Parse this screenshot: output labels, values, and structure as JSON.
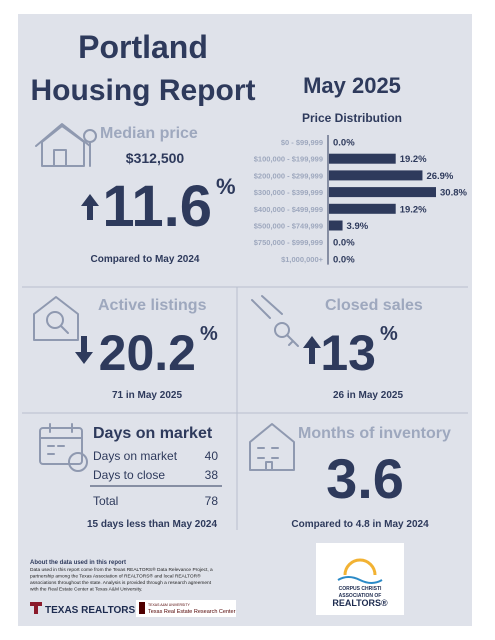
{
  "header": {
    "title_line1": "Portland",
    "title_line2": "Housing Report",
    "period": "May 2025"
  },
  "price_distribution": {
    "title": "Price Distribution",
    "categories": [
      "$0 - $99,999",
      "$100,000 - $199,999",
      "$200,000 - $299,999",
      "$300,000 - $399,999",
      "$400,000 - $499,999",
      "$500,000 - $749,999",
      "$750,000 - $999,999",
      "$1,000,000+"
    ],
    "values": [
      0,
      19.2,
      26.9,
      30.8,
      19.2,
      3.9,
      0,
      0
    ],
    "value_labels": [
      "0.0%",
      "19.2%",
      "26.9%",
      "30.8%",
      "19.2%",
      "3.9%",
      "0.0%",
      "0.0%"
    ],
    "color": "#2e3a5c"
  },
  "median_price": {
    "title": "Median price",
    "price": "$312,500",
    "change": 11.6,
    "unit": "%",
    "note": "Compared to May 2024"
  },
  "active_listings": {
    "title": "Active listings",
    "change": 20.2,
    "unit": "%",
    "note": "71 in May 2025"
  },
  "closed_sales": {
    "title": "Closed sales",
    "change": 13,
    "unit": "%",
    "note": "26 in May 2025"
  },
  "days_on_market": {
    "title": "Days on market",
    "rows": [
      [
        "Days on market",
        40
      ],
      [
        "Days to close",
        38
      ],
      [
        "Total",
        78
      ]
    ],
    "note": "15 days less than May 2024"
  },
  "months_of_inventory": {
    "title": "Months of inventory",
    "value": 3.6,
    "note": "Compared to 4.8 in May 2024"
  },
  "footer": {
    "about_title": "About the data used in this report",
    "about_lines": [
      "Data used in this report come from the Texas REALTORS® Data Relevance Project, a",
      "partnership among the Texas Association of REALTORS® and local REALTOR®",
      "associations throughout the state. Analysis is provided through a research agreement",
      "with the Real Estate Center at Texas A&M University."
    ],
    "logo_left": "TEXAS REALTORS",
    "logo_mid_small": "TEXAS A&M UNIVERSITY",
    "logo_mid": "Texas Real Estate Research Center",
    "logo_right": [
      "CORPUS CHRISTI",
      "ASSOCIATION OF",
      "REALTORS®"
    ]
  }
}
